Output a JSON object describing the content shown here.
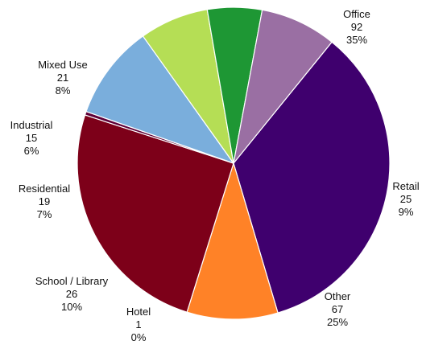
{
  "chart_data": {
    "type": "pie",
    "title": "",
    "slice_border_color": "#ffffff",
    "slices": [
      {
        "label": "Office",
        "value": 92,
        "percent": "35%",
        "color": "#3f006e"
      },
      {
        "label": "Retail",
        "value": 25,
        "percent": "9%",
        "color": "#ff8227"
      },
      {
        "label": "Other",
        "value": 67,
        "percent": "25%",
        "color": "#7d0019"
      },
      {
        "label": "Hotel",
        "value": 1,
        "percent": "0%",
        "color": "#5e0038"
      },
      {
        "label": "School / Library",
        "value": 26,
        "percent": "10%",
        "color": "#7aaedc"
      },
      {
        "label": "Residential",
        "value": 19,
        "percent": "7%",
        "color": "#b5de55"
      },
      {
        "label": "Industrial",
        "value": 15,
        "percent": "6%",
        "color": "#1e9734"
      },
      {
        "label": "Mixed Use",
        "value": 21,
        "percent": "8%",
        "color": "#9a6fa3"
      }
    ]
  }
}
